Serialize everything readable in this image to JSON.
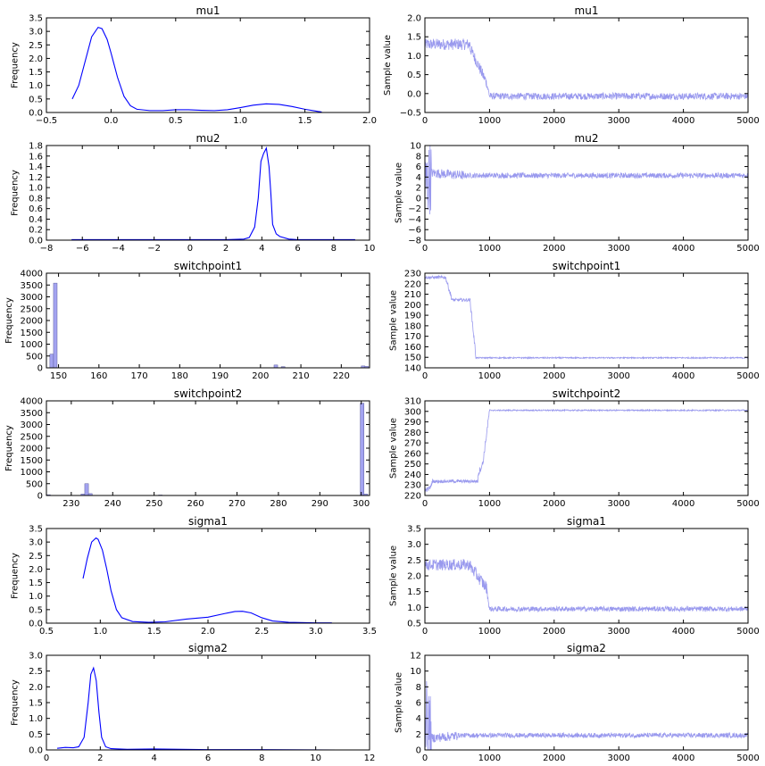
{
  "colors": {
    "kde_line": "#0000ff",
    "trace_line": "#9999ee",
    "hist_fill": "#a3a3f0"
  },
  "chart_data": [
    {
      "panel": "mu1-density",
      "type": "line",
      "title": "mu1",
      "xlabel": "",
      "ylabel": "Frequency",
      "xlim": [
        -0.5,
        2.0
      ],
      "ylim": [
        0,
        3.5
      ],
      "xticks": [
        -0.5,
        0.0,
        0.5,
        1.0,
        1.5,
        2.0
      ],
      "xtick_labels": [
        "−0.5",
        "0.0",
        "0.5",
        "1.0",
        "1.5",
        "2.0"
      ],
      "yticks": [
        0,
        0.5,
        1.0,
        1.5,
        2.0,
        2.5,
        3.0,
        3.5
      ],
      "ytick_labels": [
        "0.0",
        "0.5",
        "1.0",
        "1.5",
        "2.0",
        "2.5",
        "3.0",
        "3.5"
      ],
      "series": [
        {
          "x": [
            -0.3,
            -0.25,
            -0.2,
            -0.15,
            -0.1,
            -0.07,
            -0.03,
            0.0,
            0.05,
            0.1,
            0.15,
            0.2,
            0.3,
            0.4,
            0.5,
            0.6,
            0.7,
            0.8,
            0.9,
            1.0,
            1.1,
            1.2,
            1.3,
            1.4,
            1.5,
            1.6,
            1.63
          ],
          "y": [
            0.5,
            1.0,
            1.9,
            2.8,
            3.15,
            3.1,
            2.7,
            2.2,
            1.3,
            0.6,
            0.25,
            0.12,
            0.07,
            0.07,
            0.1,
            0.1,
            0.08,
            0.07,
            0.1,
            0.18,
            0.27,
            0.32,
            0.3,
            0.22,
            0.12,
            0.04,
            0.02
          ]
        }
      ]
    },
    {
      "panel": "mu1-trace",
      "type": "line",
      "title": "mu1",
      "xlabel": "",
      "ylabel": "Sample value",
      "xlim": [
        0,
        5000
      ],
      "ylim": [
        -0.5,
        2.0
      ],
      "xticks": [
        0,
        1000,
        2000,
        3000,
        4000,
        5000
      ],
      "xtick_labels": [
        "0",
        "1000",
        "2000",
        "3000",
        "4000",
        "5000"
      ],
      "yticks": [
        -0.5,
        0.0,
        0.5,
        1.0,
        1.5,
        2.0
      ],
      "ytick_labels": [
        "−0.5",
        "0.0",
        "0.5",
        "1.0",
        "1.5",
        "2.0"
      ],
      "trace_segments": [
        {
          "x0": 0,
          "x1": 700,
          "y0": 1.3,
          "y1": 1.3,
          "noise": 0.15
        },
        {
          "x0": 700,
          "x1": 950,
          "y0": 1.2,
          "y1": 0.3,
          "noise": 0.15
        },
        {
          "x0": 950,
          "x1": 1000,
          "y0": 0.3,
          "y1": -0.05,
          "noise": 0.1
        },
        {
          "x0": 1000,
          "x1": 5000,
          "y0": -0.07,
          "y1": -0.07,
          "noise": 0.09
        }
      ]
    },
    {
      "panel": "mu2-density",
      "type": "line",
      "title": "mu2",
      "xlabel": "",
      "ylabel": "Frequency",
      "xlim": [
        -8,
        10
      ],
      "ylim": [
        0,
        1.8
      ],
      "xticks": [
        -8,
        -6,
        -4,
        -2,
        0,
        2,
        4,
        6,
        8,
        10
      ],
      "xtick_labels": [
        "−8",
        "−6",
        "−4",
        "−2",
        "0",
        "2",
        "4",
        "6",
        "8",
        "10"
      ],
      "yticks": [
        0,
        0.2,
        0.4,
        0.6,
        0.8,
        1.0,
        1.2,
        1.4,
        1.6,
        1.8
      ],
      "ytick_labels": [
        "0.0",
        "0.2",
        "0.4",
        "0.6",
        "0.8",
        "1.0",
        "1.2",
        "1.4",
        "1.6",
        "1.8"
      ],
      "series": [
        {
          "x": [
            -6.6,
            -4,
            -2,
            0,
            2,
            3.0,
            3.3,
            3.6,
            3.8,
            3.95,
            4.1,
            4.25,
            4.4,
            4.5,
            4.6,
            4.8,
            5.0,
            5.5,
            6,
            8,
            9.2
          ],
          "y": [
            0.01,
            0.01,
            0.01,
            0.01,
            0.01,
            0.02,
            0.05,
            0.25,
            0.8,
            1.5,
            1.65,
            1.75,
            1.4,
            0.9,
            0.3,
            0.12,
            0.07,
            0.02,
            0.01,
            0.01,
            0.01
          ]
        }
      ]
    },
    {
      "panel": "mu2-trace",
      "type": "line",
      "title": "mu2",
      "xlabel": "",
      "ylabel": "Sample value",
      "xlim": [
        0,
        5000
      ],
      "ylim": [
        -8,
        10
      ],
      "xticks": [
        0,
        1000,
        2000,
        3000,
        4000,
        5000
      ],
      "xtick_labels": [
        "0",
        "1000",
        "2000",
        "3000",
        "4000",
        "5000"
      ],
      "yticks": [
        -8,
        -6,
        -4,
        -2,
        0,
        2,
        4,
        6,
        8,
        10
      ],
      "ytick_labels": [
        "−8",
        "−6",
        "−4",
        "−2",
        "0",
        "2",
        "4",
        "6",
        "8",
        "10"
      ],
      "trace_segments": [
        {
          "x0": 0,
          "x1": 100,
          "y0": 2.0,
          "y1": 4.5,
          "noise": 7.0
        },
        {
          "x0": 100,
          "x1": 600,
          "y0": 4.8,
          "y1": 4.3,
          "noise": 0.9
        },
        {
          "x0": 600,
          "x1": 5000,
          "y0": 4.3,
          "y1": 4.3,
          "noise": 0.5
        }
      ]
    },
    {
      "panel": "switchpoint1-hist",
      "type": "bar",
      "title": "switchpoint1",
      "xlabel": "",
      "ylabel": "Frequency",
      "xlim": [
        147,
        227
      ],
      "ylim": [
        0,
        4000
      ],
      "xticks": [
        150,
        160,
        170,
        180,
        190,
        200,
        210,
        220
      ],
      "xtick_labels": [
        "150",
        "160",
        "170",
        "180",
        "190",
        "200",
        "210",
        "220"
      ],
      "yticks": [
        0,
        500,
        1000,
        1500,
        2000,
        2500,
        3000,
        3500,
        4000
      ],
      "ytick_labels": [
        "0",
        "500",
        "1000",
        "1500",
        "2000",
        "2500",
        "3000",
        "3500",
        "4000"
      ],
      "bin_width": 0.9,
      "bars": [
        {
          "x": 148.3,
          "value": 580
        },
        {
          "x": 149.2,
          "value": 3580
        },
        {
          "x": 203.8,
          "value": 120
        },
        {
          "x": 205.6,
          "value": 50
        },
        {
          "x": 225.4,
          "value": 80
        },
        {
          "x": 226.3,
          "value": 60
        }
      ]
    },
    {
      "panel": "switchpoint1-trace",
      "type": "line",
      "title": "switchpoint1",
      "xlabel": "",
      "ylabel": "Sample value",
      "xlim": [
        0,
        5000
      ],
      "ylim": [
        140,
        230
      ],
      "xticks": [
        0,
        1000,
        2000,
        3000,
        4000,
        5000
      ],
      "xtick_labels": [
        "0",
        "1000",
        "2000",
        "3000",
        "4000",
        "5000"
      ],
      "yticks": [
        140,
        150,
        160,
        170,
        180,
        190,
        200,
        210,
        220,
        230
      ],
      "ytick_labels": [
        "140",
        "150",
        "160",
        "170",
        "180",
        "190",
        "200",
        "210",
        "220",
        "230"
      ],
      "trace_segments": [
        {
          "x0": 0,
          "x1": 320,
          "y0": 226,
          "y1": 226,
          "noise": 1.5
        },
        {
          "x0": 320,
          "x1": 420,
          "y0": 226,
          "y1": 205,
          "noise": 2.5
        },
        {
          "x0": 420,
          "x1": 700,
          "y0": 204.5,
          "y1": 204.5,
          "noise": 1.5
        },
        {
          "x0": 700,
          "x1": 790,
          "y0": 204,
          "y1": 150,
          "noise": 3.0
        },
        {
          "x0": 790,
          "x1": 5000,
          "y0": 149.5,
          "y1": 149.5,
          "noise": 0.6
        }
      ]
    },
    {
      "panel": "switchpoint2-hist",
      "type": "bar",
      "title": "switchpoint2",
      "xlabel": "",
      "ylabel": "Frequency",
      "xlim": [
        224,
        302
      ],
      "ylim": [
        0,
        4000
      ],
      "xticks": [
        230,
        240,
        250,
        260,
        270,
        280,
        290,
        300
      ],
      "xtick_labels": [
        "230",
        "240",
        "250",
        "260",
        "270",
        "280",
        "290",
        "300"
      ],
      "yticks": [
        0,
        500,
        1000,
        1500,
        2000,
        2500,
        3000,
        3500,
        4000
      ],
      "ytick_labels": [
        "0",
        "500",
        "1000",
        "1500",
        "2000",
        "2500",
        "3000",
        "3500",
        "4000"
      ],
      "bin_width": 0.9,
      "bars": [
        {
          "x": 224.5,
          "value": 30
        },
        {
          "x": 232.8,
          "value": 60
        },
        {
          "x": 233.7,
          "value": 500
        },
        {
          "x": 234.6,
          "value": 80
        },
        {
          "x": 251.5,
          "value": 20
        },
        {
          "x": 300.2,
          "value": 3900
        },
        {
          "x": 301.1,
          "value": 60
        }
      ]
    },
    {
      "panel": "switchpoint2-trace",
      "type": "line",
      "title": "switchpoint2",
      "xlabel": "",
      "ylabel": "Sample value",
      "xlim": [
        0,
        5000
      ],
      "ylim": [
        220,
        310
      ],
      "xticks": [
        0,
        1000,
        2000,
        3000,
        4000,
        5000
      ],
      "xtick_labels": [
        "0",
        "1000",
        "2000",
        "3000",
        "4000",
        "5000"
      ],
      "yticks": [
        220,
        230,
        240,
        250,
        260,
        270,
        280,
        290,
        300,
        310
      ],
      "ytick_labels": [
        "220",
        "230",
        "240",
        "250",
        "260",
        "270",
        "280",
        "290",
        "300",
        "310"
      ],
      "trace_segments": [
        {
          "x0": 0,
          "x1": 80,
          "y0": 225,
          "y1": 227,
          "noise": 2.0
        },
        {
          "x0": 80,
          "x1": 120,
          "y0": 227,
          "y1": 234,
          "noise": 2.0
        },
        {
          "x0": 120,
          "x1": 820,
          "y0": 233.5,
          "y1": 233.5,
          "noise": 1.5
        },
        {
          "x0": 820,
          "x1": 900,
          "y0": 240,
          "y1": 251,
          "noise": 3.0
        },
        {
          "x0": 900,
          "x1": 1000,
          "y0": 252,
          "y1": 301,
          "noise": 3.0
        },
        {
          "x0": 1000,
          "x1": 5000,
          "y0": 301,
          "y1": 301,
          "noise": 0.6
        }
      ]
    },
    {
      "panel": "sigma1-density",
      "type": "line",
      "title": "sigma1",
      "xlabel": "",
      "ylabel": "Frequency",
      "xlim": [
        0.5,
        3.5
      ],
      "ylim": [
        0,
        3.5
      ],
      "xticks": [
        0.5,
        1.0,
        1.5,
        2.0,
        2.5,
        3.0,
        3.5
      ],
      "xtick_labels": [
        "0.5",
        "1.0",
        "1.5",
        "2.0",
        "2.5",
        "3.0",
        "3.5"
      ],
      "yticks": [
        0,
        0.5,
        1.0,
        1.5,
        2.0,
        2.5,
        3.0,
        3.5
      ],
      "ytick_labels": [
        "0.0",
        "0.5",
        "1.0",
        "1.5",
        "2.0",
        "2.5",
        "3.0",
        "3.5"
      ],
      "series": [
        {
          "x": [
            0.84,
            0.88,
            0.92,
            0.96,
            0.98,
            1.02,
            1.06,
            1.1,
            1.15,
            1.2,
            1.3,
            1.45,
            1.6,
            1.8,
            2.0,
            2.15,
            2.25,
            2.32,
            2.4,
            2.5,
            2.6,
            2.75,
            3.0,
            3.15
          ],
          "y": [
            1.65,
            2.4,
            3.0,
            3.15,
            3.1,
            2.7,
            2.0,
            1.2,
            0.5,
            0.2,
            0.06,
            0.03,
            0.05,
            0.15,
            0.22,
            0.35,
            0.43,
            0.44,
            0.38,
            0.2,
            0.08,
            0.03,
            0.01,
            0.01
          ]
        }
      ]
    },
    {
      "panel": "sigma1-trace",
      "type": "line",
      "title": "sigma1",
      "xlabel": "",
      "ylabel": "Sample value",
      "xlim": [
        0,
        5000
      ],
      "ylim": [
        0.5,
        3.5
      ],
      "xticks": [
        0,
        1000,
        2000,
        3000,
        4000,
        5000
      ],
      "xtick_labels": [
        "0",
        "1000",
        "2000",
        "3000",
        "4000",
        "5000"
      ],
      "yticks": [
        0.5,
        1.0,
        1.5,
        2.0,
        2.5,
        3.0,
        3.5
      ],
      "ytick_labels": [
        "0.5",
        "1.0",
        "1.5",
        "2.0",
        "2.5",
        "3.0",
        "3.5"
      ],
      "trace_segments": [
        {
          "x0": 0,
          "x1": 700,
          "y0": 2.35,
          "y1": 2.35,
          "noise": 0.18
        },
        {
          "x0": 700,
          "x1": 960,
          "y0": 2.3,
          "y1": 1.6,
          "noise": 0.2
        },
        {
          "x0": 960,
          "x1": 1000,
          "y0": 1.5,
          "y1": 0.95,
          "noise": 0.1
        },
        {
          "x0": 1000,
          "x1": 5000,
          "y0": 0.95,
          "y1": 0.95,
          "noise": 0.08
        }
      ]
    },
    {
      "panel": "sigma2-density",
      "type": "line",
      "title": "sigma2",
      "xlabel": "",
      "ylabel": "Frequency",
      "xlim": [
        0,
        12
      ],
      "ylim": [
        0,
        3.0
      ],
      "xticks": [
        0,
        2,
        4,
        6,
        8,
        10,
        12
      ],
      "xtick_labels": [
        "0",
        "2",
        "4",
        "6",
        "8",
        "10",
        "12"
      ],
      "yticks": [
        0,
        0.5,
        1.0,
        1.5,
        2.0,
        2.5,
        3.0
      ],
      "ytick_labels": [
        "0.0",
        "0.5",
        "1.0",
        "1.5",
        "2.0",
        "2.5",
        "3.0"
      ],
      "series": [
        {
          "x": [
            0.4,
            0.7,
            1.0,
            1.2,
            1.4,
            1.55,
            1.65,
            1.75,
            1.85,
            1.95,
            2.05,
            2.2,
            2.4,
            3.0,
            4.0,
            6.0,
            8.0,
            10.8
          ],
          "y": [
            0.05,
            0.08,
            0.07,
            0.1,
            0.4,
            1.5,
            2.4,
            2.6,
            2.2,
            1.2,
            0.4,
            0.1,
            0.04,
            0.02,
            0.03,
            0.01,
            0.01,
            0.0
          ]
        }
      ]
    },
    {
      "panel": "sigma2-trace",
      "type": "line",
      "title": "sigma2",
      "xlabel": "",
      "ylabel": "Sample value",
      "xlim": [
        0,
        5000
      ],
      "ylim": [
        0,
        12
      ],
      "xticks": [
        0,
        1000,
        2000,
        3000,
        4000,
        5000
      ],
      "xtick_labels": [
        "0",
        "1000",
        "2000",
        "3000",
        "4000",
        "5000"
      ],
      "yticks": [
        0,
        2,
        4,
        6,
        8,
        10,
        12
      ],
      "ytick_labels": [
        "0",
        "2",
        "4",
        "6",
        "8",
        "10",
        "12"
      ],
      "trace_segments": [
        {
          "x0": 0,
          "x1": 100,
          "y0": 5.0,
          "y1": 2.0,
          "noise": 4.5
        },
        {
          "x0": 100,
          "x1": 500,
          "y0": 1.5,
          "y1": 1.8,
          "noise": 0.6
        },
        {
          "x0": 500,
          "x1": 5000,
          "y0": 1.85,
          "y1": 1.85,
          "noise": 0.3
        }
      ]
    }
  ]
}
